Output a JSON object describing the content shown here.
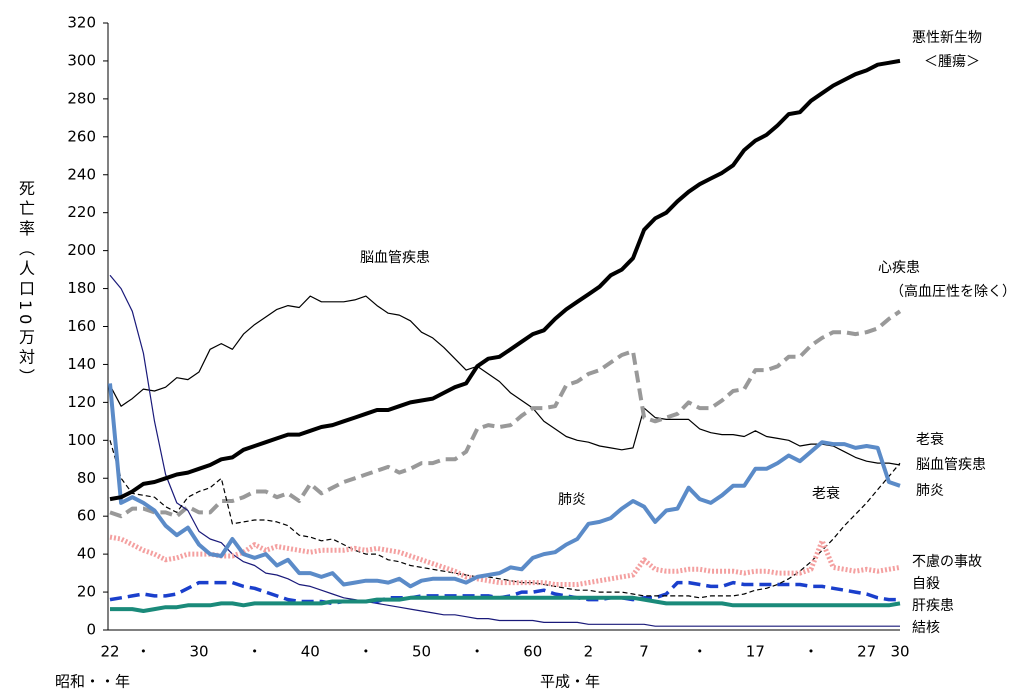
{
  "chart_data": {
    "type": "line",
    "ylabel": "死亡率（人口10万対）",
    "x_era_labels": [
      "昭和・・年",
      "平成・年"
    ],
    "categories": [
      "22",
      null,
      null,
      "・",
      null,
      null,
      null,
      null,
      "30",
      null,
      null,
      null,
      null,
      "・",
      null,
      null,
      null,
      null,
      "40",
      null,
      null,
      null,
      null,
      "・",
      null,
      null,
      null,
      null,
      "50",
      null,
      null,
      null,
      null,
      "・",
      null,
      null,
      null,
      null,
      "60",
      null,
      null,
      null,
      null,
      "2",
      null,
      null,
      null,
      null,
      "7",
      null,
      null,
      null,
      null,
      "・",
      null,
      null,
      null,
      null,
      "17",
      null,
      null,
      null,
      null,
      "・",
      null,
      null,
      null,
      null,
      "27",
      null,
      null,
      "30"
    ],
    "ylim": [
      0,
      320
    ],
    "yticks": [
      0,
      20,
      40,
      60,
      80,
      100,
      120,
      140,
      160,
      180,
      200,
      220,
      240,
      260,
      280,
      300,
      320
    ],
    "annotations": [
      "脳血管疾患",
      "肺炎",
      "老衰"
    ],
    "series": [
      {
        "name": [
          "悪性新生物",
          "＜腫瘍＞"
        ],
        "color": "#000000",
        "style": "solid",
        "width": 4,
        "values": [
          69,
          70,
          73,
          77,
          78,
          80,
          82,
          83,
          85,
          87,
          90,
          91,
          95,
          97,
          99,
          101,
          103,
          103,
          105,
          107,
          108,
          110,
          112,
          114,
          116,
          116,
          118,
          120,
          121,
          122,
          125,
          128,
          130,
          139,
          143,
          144,
          148,
          152,
          156,
          158,
          164,
          169,
          173,
          177,
          181,
          187,
          190,
          196,
          211,
          217,
          220,
          226,
          231,
          235,
          238,
          241,
          245,
          253,
          258,
          261,
          266,
          272,
          273,
          279,
          283,
          287,
          290,
          293,
          295,
          298,
          299,
          300
        ]
      },
      {
        "name": [
          "心疾患",
          "（高血圧性を除く）"
        ],
        "color": "#999999",
        "style": "dashed",
        "width": 4,
        "values": [
          62,
          60,
          64,
          64,
          62,
          62,
          60,
          65,
          62,
          62,
          68,
          68,
          70,
          73,
          73,
          70,
          72,
          68,
          77,
          72,
          75,
          78,
          80,
          82,
          84,
          86,
          83,
          85,
          88,
          88,
          90,
          90,
          94,
          106,
          108,
          107,
          108,
          113,
          117,
          117,
          118,
          129,
          131,
          135,
          137,
          141,
          145,
          147,
          112,
          110,
          112,
          114,
          120,
          117,
          117,
          121,
          126,
          127,
          137,
          137,
          139,
          144,
          144,
          150,
          154,
          157,
          157,
          156,
          157,
          159,
          164,
          168
        ]
      },
      {
        "name": "脳血管疾患",
        "color": "#000000",
        "style": "solid",
        "width": 1.2,
        "values": [
          129,
          118,
          122,
          127,
          126,
          128,
          133,
          132,
          136,
          148,
          151,
          148,
          156,
          161,
          165,
          169,
          171,
          170,
          176,
          173,
          173,
          173,
          174,
          176,
          171,
          167,
          166,
          163,
          157,
          154,
          149,
          143,
          137,
          139,
          135,
          131,
          125,
          121,
          117,
          110,
          106,
          102,
          100,
          99,
          97,
          96,
          95,
          96,
          117,
          112,
          111,
          111,
          111,
          106,
          104,
          103,
          103,
          102,
          105,
          102,
          101,
          100,
          97,
          98,
          98,
          97,
          94,
          91,
          89,
          88,
          88,
          87
        ]
      },
      {
        "name": "肺炎",
        "color": "#5b8bc8",
        "style": "solid",
        "width": 4,
        "values": [
          130,
          67,
          70,
          67,
          63,
          55,
          50,
          54,
          45,
          40,
          39,
          48,
          40,
          38,
          40,
          34,
          37,
          30,
          30,
          28,
          30,
          24,
          25,
          26,
          26,
          25,
          27,
          23,
          26,
          27,
          27,
          27,
          25,
          28,
          29,
          30,
          33,
          32,
          38,
          40,
          41,
          45,
          48,
          56,
          57,
          59,
          64,
          68,
          65,
          57,
          63,
          64,
          75,
          69,
          67,
          71,
          76,
          76,
          85,
          85,
          88,
          92,
          89,
          94,
          99,
          98,
          98,
          96,
          97,
          96,
          78,
          76
        ]
      },
      {
        "name": "老衰",
        "color": "#000000",
        "style": "dashed-thin",
        "width": 1.2,
        "values": [
          100,
          80,
          72,
          71,
          70,
          65,
          62,
          70,
          73,
          75,
          80,
          56,
          57,
          58,
          58,
          57,
          55,
          50,
          49,
          47,
          48,
          45,
          42,
          40,
          40,
          37,
          36,
          34,
          33,
          32,
          31,
          30,
          29,
          28,
          28,
          27,
          26,
          25,
          25,
          24,
          23,
          22,
          21,
          21,
          20,
          20,
          20,
          19,
          18,
          18,
          18,
          18,
          18,
          17,
          18,
          18,
          18,
          19,
          21,
          22,
          24,
          27,
          31,
          36,
          42,
          48,
          55,
          61,
          67,
          74,
          81,
          88
        ]
      },
      {
        "name": "不慮の事故",
        "color": "#f4a0a0",
        "style": "dotted",
        "width": 5,
        "values": [
          49,
          48,
          45,
          42,
          40,
          37,
          38,
          40,
          40,
          40,
          39,
          39,
          41,
          45,
          42,
          44,
          43,
          42,
          41,
          42,
          42,
          42,
          43,
          42,
          43,
          42,
          41,
          39,
          37,
          35,
          33,
          31,
          28,
          27,
          26,
          25,
          25,
          25,
          25,
          25,
          24,
          24,
          24,
          25,
          26,
          27,
          28,
          29,
          37,
          32,
          31,
          31,
          32,
          32,
          31,
          31,
          31,
          30,
          31,
          31,
          30,
          30,
          30,
          32,
          47,
          33,
          32,
          31,
          32,
          31,
          32,
          33
        ]
      },
      {
        "name": "自殺",
        "color": "#1a3fcc",
        "style": "dashed",
        "width": 3.5,
        "values": [
          16,
          17,
          18,
          19,
          18,
          18,
          19,
          22,
          25,
          25,
          25,
          25,
          23,
          22,
          20,
          18,
          16,
          15,
          15,
          15,
          14,
          15,
          15,
          15,
          15,
          17,
          17,
          17,
          18,
          18,
          18,
          18,
          18,
          18,
          18,
          17,
          18,
          20,
          20,
          21,
          19,
          18,
          17,
          16,
          16,
          17,
          17,
          16,
          17,
          17,
          19,
          25,
          25,
          24,
          23,
          23,
          25,
          24,
          24,
          24,
          24,
          24,
          24,
          23,
          23,
          22,
          21,
          20,
          19,
          17,
          16,
          16
        ]
      },
      {
        "name": "肝疾患",
        "color": "#1a8a7a",
        "style": "solid",
        "width": 4,
        "values": [
          11,
          11,
          11,
          10,
          11,
          12,
          12,
          13,
          13,
          13,
          14,
          14,
          13,
          14,
          14,
          14,
          14,
          14,
          14,
          14,
          15,
          15,
          15,
          15,
          16,
          16,
          16,
          17,
          17,
          17,
          17,
          17,
          17,
          17,
          17,
          17,
          17,
          17,
          17,
          17,
          17,
          17,
          17,
          17,
          17,
          17,
          17,
          17,
          16,
          15,
          14,
          14,
          14,
          14,
          14,
          14,
          13,
          13,
          13,
          13,
          13,
          13,
          13,
          13,
          13,
          13,
          13,
          13,
          13,
          13,
          13,
          14
        ]
      },
      {
        "name": "結核",
        "color": "#1a1a7a",
        "style": "solid",
        "width": 1.2,
        "values": [
          187,
          180,
          168,
          146,
          110,
          82,
          67,
          63,
          52,
          48,
          46,
          40,
          36,
          34,
          30,
          29,
          27,
          24,
          23,
          21,
          19,
          17,
          16,
          15,
          14,
          13,
          12,
          11,
          10,
          9,
          8,
          8,
          7,
          6,
          6,
          5,
          5,
          5,
          5,
          4,
          4,
          4,
          4,
          3,
          3,
          3,
          3,
          3,
          3,
          2,
          2,
          2,
          2,
          2,
          2,
          2,
          2,
          2,
          2,
          2,
          2,
          2,
          2,
          2,
          2,
          2,
          2,
          2,
          2,
          2,
          2,
          2
        ]
      }
    ]
  }
}
